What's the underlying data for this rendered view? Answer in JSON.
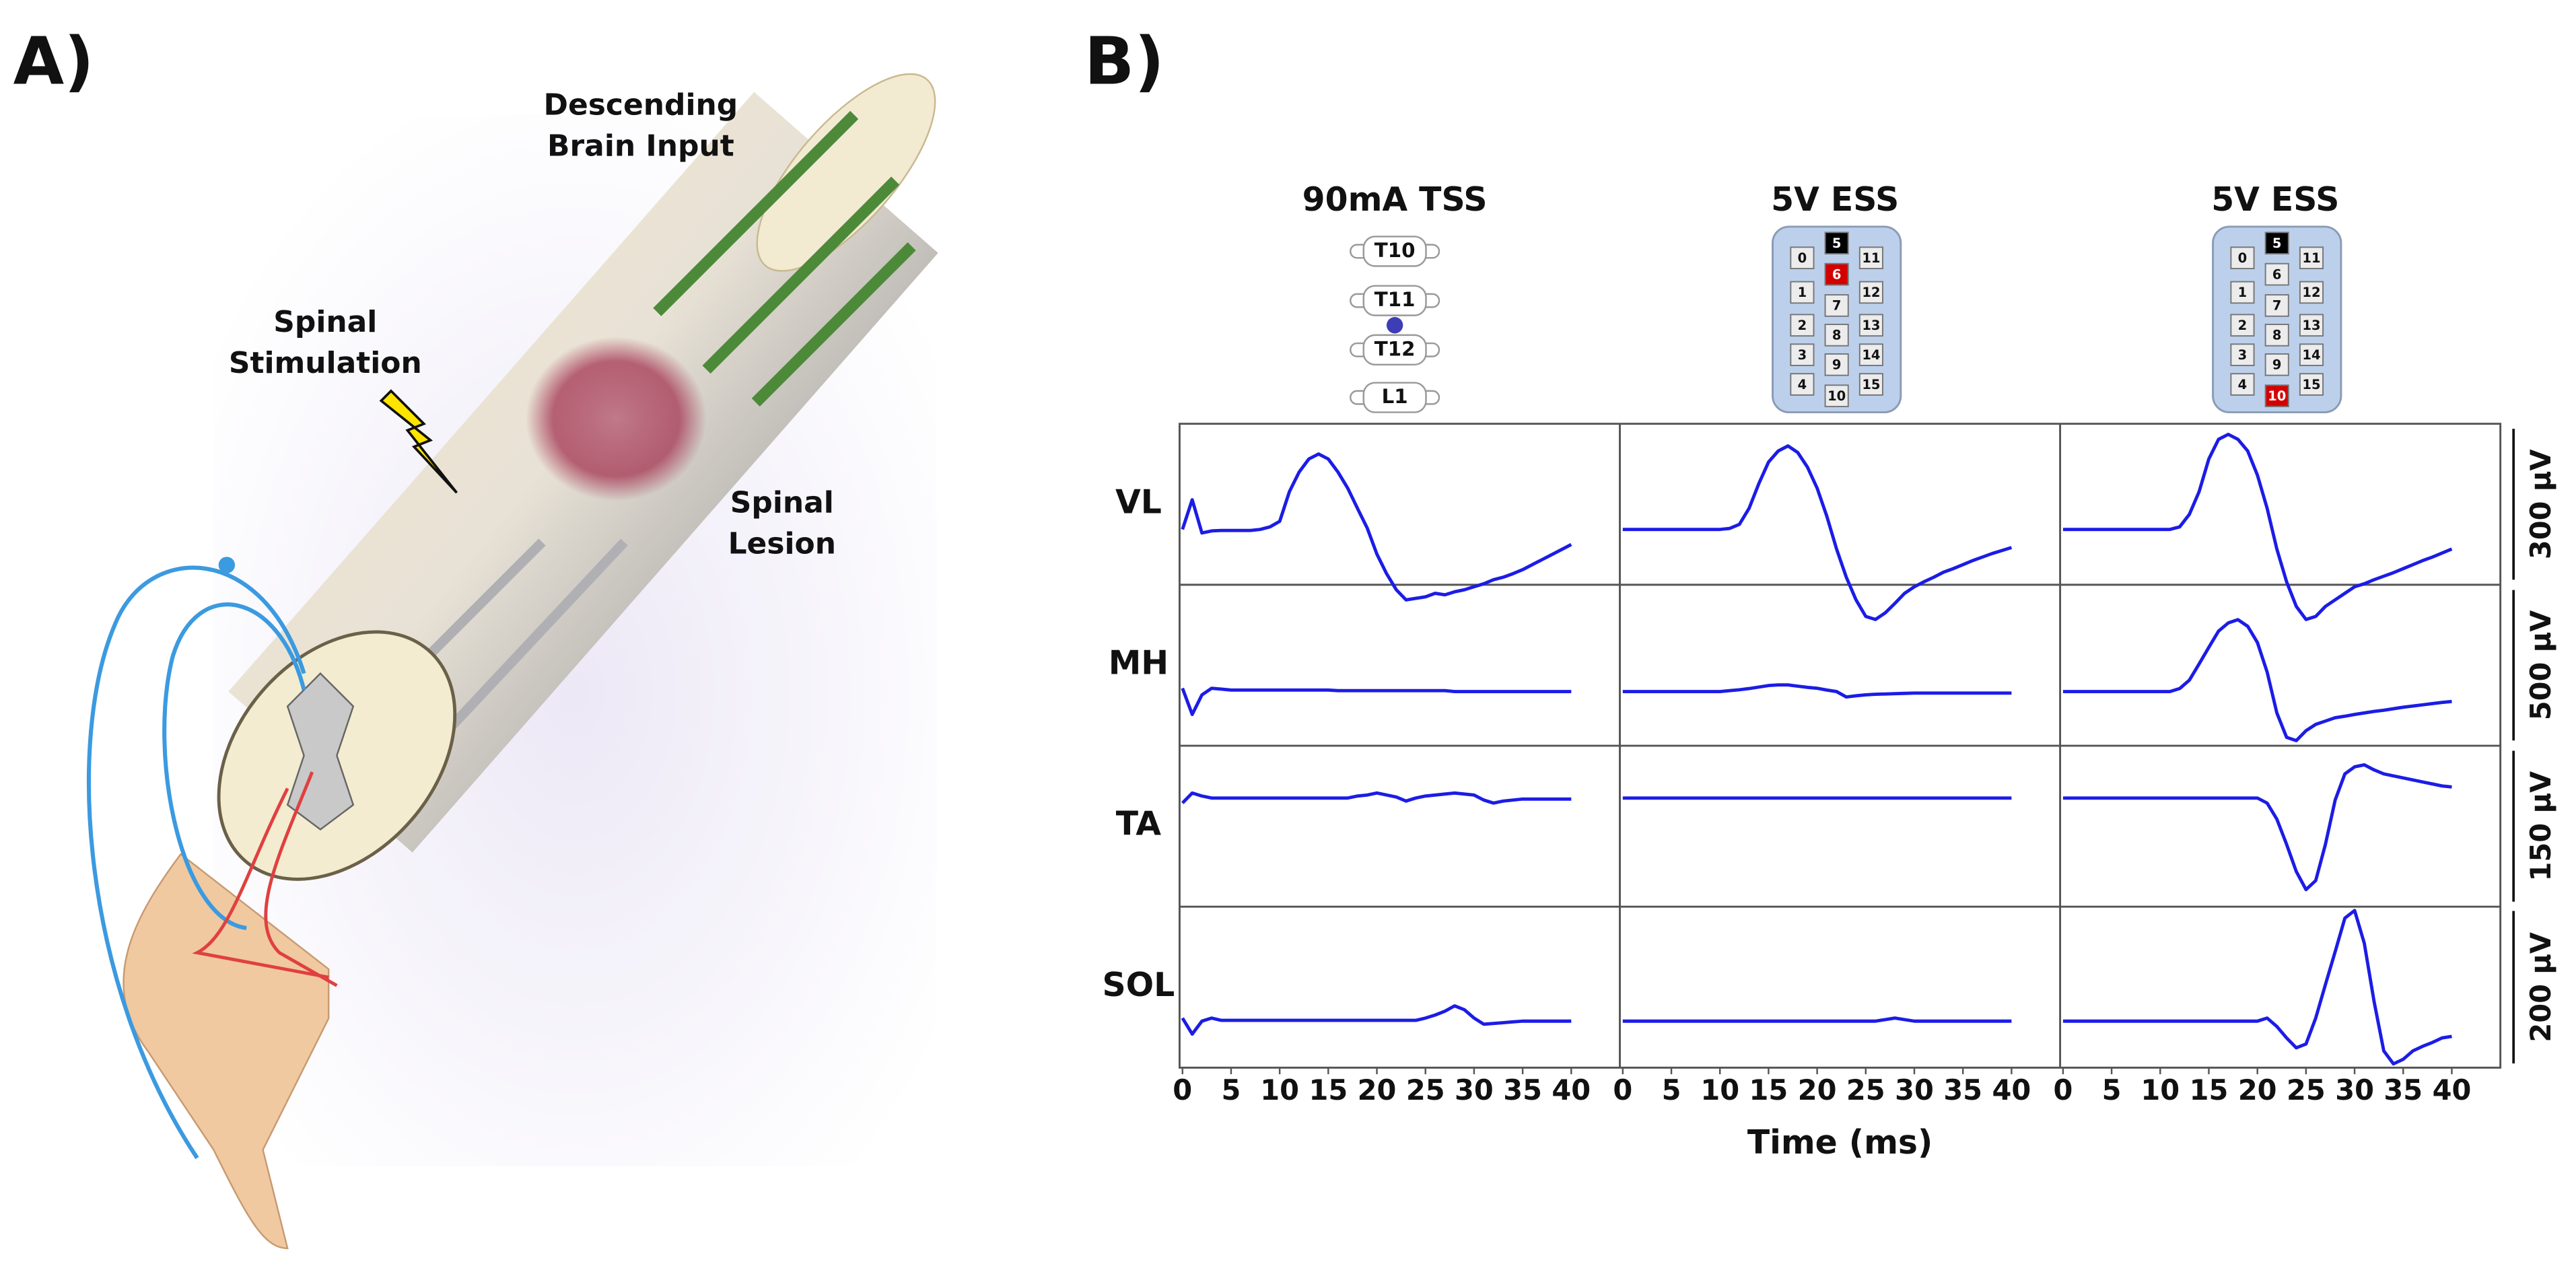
{
  "panel_a": {
    "label": "A)",
    "annotations": [
      [
        "Descending",
        "Brain Input"
      ],
      [
        "Spinal",
        "Stimulation"
      ],
      [
        "Spinal",
        "Lesion"
      ]
    ]
  },
  "chart_data": {
    "type": "line",
    "label": "B)",
    "xlabel": "Time (ms)",
    "xlim": [
      -0.3,
      45
    ],
    "xticks": [
      0,
      5,
      10,
      15,
      20,
      25,
      30,
      35,
      40
    ],
    "color": "#1c1ce6",
    "x": [
      0,
      1,
      2,
      3,
      4,
      5,
      6,
      7,
      8,
      9,
      10,
      11,
      12,
      13,
      14,
      15,
      16,
      17,
      18,
      19,
      20,
      21,
      22,
      23,
      24,
      25,
      26,
      27,
      28,
      29,
      30,
      31,
      32,
      33,
      34,
      35,
      36,
      37,
      38,
      39,
      40
    ],
    "columns": [
      {
        "title": "90mA TSS",
        "vertebrae": [
          "T10",
          "T11",
          "T12",
          "L1"
        ],
        "dot_color": "#3d3db8"
      },
      {
        "title": "5V ESS",
        "electrodes": {
          "left": [
            "0",
            "1",
            "2",
            "3",
            "4"
          ],
          "middle": [
            "5",
            "6",
            "7",
            "8",
            "9",
            "10"
          ],
          "right": [
            "11",
            "12",
            "13",
            "14",
            "15"
          ]
        },
        "highlight": {
          "5": "#000000",
          "6": "#d40000"
        }
      },
      {
        "title": "5V ESS",
        "electrodes": {
          "left": [
            "0",
            "1",
            "2",
            "3",
            "4"
          ],
          "middle": [
            "5",
            "6",
            "7",
            "8",
            "9",
            "10"
          ],
          "right": [
            "11",
            "12",
            "13",
            "14",
            "15"
          ]
        },
        "highlight": {
          "5": "#000000",
          "10": "#d40000"
        }
      }
    ],
    "rows": [
      {
        "name": "VL",
        "ylim": [
          -110,
          210
        ],
        "scale_bar": {
          "value": 300,
          "label": "300 µV"
        },
        "traces": [
          [
            0,
            59,
            -7,
            -3,
            -2,
            -2,
            -2,
            -2,
            0,
            5,
            16,
            75,
            114,
            140,
            150,
            140,
            114,
            82,
            42,
            3,
            -49,
            -88,
            -120,
            -140,
            -137,
            -134,
            -127,
            -130,
            -124,
            -120,
            -114,
            -108,
            -100,
            -95,
            -88,
            -80,
            -70,
            -60,
            -50,
            -40,
            -30
          ],
          [
            0,
            0,
            0,
            0,
            0,
            0,
            0,
            0,
            0,
            0,
            0,
            2,
            10,
            42,
            91,
            134,
            156,
            166,
            153,
            124,
            82,
            26,
            -39,
            -95,
            -140,
            -173,
            -179,
            -166,
            -147,
            -127,
            -114,
            -104,
            -95,
            -85,
            -78,
            -70,
            -62,
            -55,
            -48,
            -42,
            -36
          ],
          [
            0,
            0,
            0,
            0,
            0,
            0,
            0,
            0,
            0,
            0,
            0,
            0,
            5,
            30,
            75,
            140,
            179,
            189,
            179,
            156,
            108,
            42,
            -39,
            -104,
            -153,
            -179,
            -173,
            -153,
            -140,
            -127,
            -114,
            -108,
            -100,
            -93,
            -86,
            -78,
            -70,
            -62,
            -55,
            -47,
            -39
          ]
        ]
      },
      {
        "name": "MH",
        "ylim": [
          -180,
          355
        ],
        "scale_bar": {
          "value": 500,
          "label": "500 µV"
        },
        "traces": [
          [
            11,
            -76,
            -11,
            11,
            8,
            5,
            5,
            5,
            5,
            5,
            5,
            5,
            5,
            5,
            5,
            5,
            3,
            3,
            3,
            3,
            3,
            3,
            3,
            3,
            3,
            3,
            3,
            3,
            0,
            0,
            0,
            0,
            0,
            0,
            0,
            0,
            0,
            0,
            0,
            0,
            0
          ],
          [
            0,
            0,
            0,
            0,
            0,
            0,
            0,
            0,
            0,
            0,
            0,
            3,
            6,
            10,
            15,
            20,
            22,
            22,
            18,
            14,
            11,
            5,
            0,
            -18,
            -14,
            -11,
            -9,
            -8,
            -7,
            -6,
            -5,
            -5,
            -5,
            -5,
            -5,
            -5,
            -5,
            -5,
            -5,
            -5,
            -5
          ],
          [
            0,
            0,
            0,
            0,
            0,
            0,
            0,
            0,
            0,
            0,
            0,
            0,
            10,
            38,
            92,
            147,
            201,
            228,
            239,
            217,
            163,
            65,
            -71,
            -152,
            -163,
            -130,
            -109,
            -98,
            -87,
            -82,
            -76,
            -71,
            -66,
            -62,
            -57,
            -52,
            -48,
            -44,
            -40,
            -36,
            -33
          ]
        ]
      },
      {
        "name": "TA",
        "ylim": [
          -108,
          52
        ],
        "scale_bar": {
          "value": 150,
          "label": "150 µV"
        },
        "traces": [
          [
            -5,
            5,
            2,
            0,
            0,
            0,
            0,
            0,
            0,
            0,
            0,
            0,
            0,
            0,
            0,
            0,
            0,
            0,
            2,
            3,
            5,
            3,
            1,
            -3,
            0,
            2,
            3,
            4,
            5,
            4,
            3,
            -2,
            -5,
            -3,
            -2,
            -1,
            -1,
            -1,
            -1,
            -1,
            -1
          ],
          [
            0,
            0,
            0,
            0,
            0,
            0,
            0,
            0,
            0,
            0,
            0,
            0,
            0,
            0,
            0,
            0,
            0,
            0,
            0,
            0,
            0,
            0,
            0,
            0,
            0,
            0,
            0,
            0,
            0,
            0,
            0,
            0,
            0,
            0,
            0,
            0,
            0,
            0,
            0,
            0,
            0
          ],
          [
            0,
            0,
            0,
            0,
            0,
            0,
            0,
            0,
            0,
            0,
            0,
            0,
            0,
            0,
            0,
            0,
            0,
            0,
            0,
            0,
            0,
            -5,
            -21,
            -46,
            -73,
            -91,
            -82,
            -46,
            -2,
            24,
            31,
            33,
            28,
            24,
            22,
            20,
            18,
            16,
            14,
            12,
            11
          ]
        ]
      },
      {
        "name": "SOL",
        "ylim": [
          -61,
          150
        ],
        "scale_bar": {
          "value": 200,
          "label": "200 µV"
        },
        "traces": [
          [
            4,
            -17,
            0,
            4,
            1,
            1,
            1,
            1,
            1,
            1,
            1,
            1,
            1,
            1,
            1,
            1,
            1,
            1,
            1,
            1,
            1,
            1,
            1,
            1,
            1,
            4,
            8,
            13,
            20,
            15,
            4,
            -4,
            -3,
            -2,
            -1,
            0,
            0,
            0,
            0,
            0,
            0
          ],
          [
            0,
            0,
            0,
            0,
            0,
            0,
            0,
            0,
            0,
            0,
            0,
            0,
            0,
            0,
            0,
            0,
            0,
            0,
            0,
            0,
            0,
            0,
            0,
            0,
            0,
            0,
            0,
            2,
            4,
            2,
            0,
            0,
            0,
            0,
            0,
            0,
            0,
            0,
            0,
            0,
            0
          ],
          [
            0,
            0,
            0,
            0,
            0,
            0,
            0,
            0,
            0,
            0,
            0,
            0,
            0,
            0,
            0,
            0,
            0,
            0,
            0,
            0,
            0,
            4,
            -7,
            -22,
            -35,
            -30,
            4,
            48,
            91,
            135,
            145,
            102,
            26,
            -39,
            -56,
            -50,
            -39,
            -33,
            -28,
            -22,
            -20
          ]
        ]
      }
    ]
  }
}
